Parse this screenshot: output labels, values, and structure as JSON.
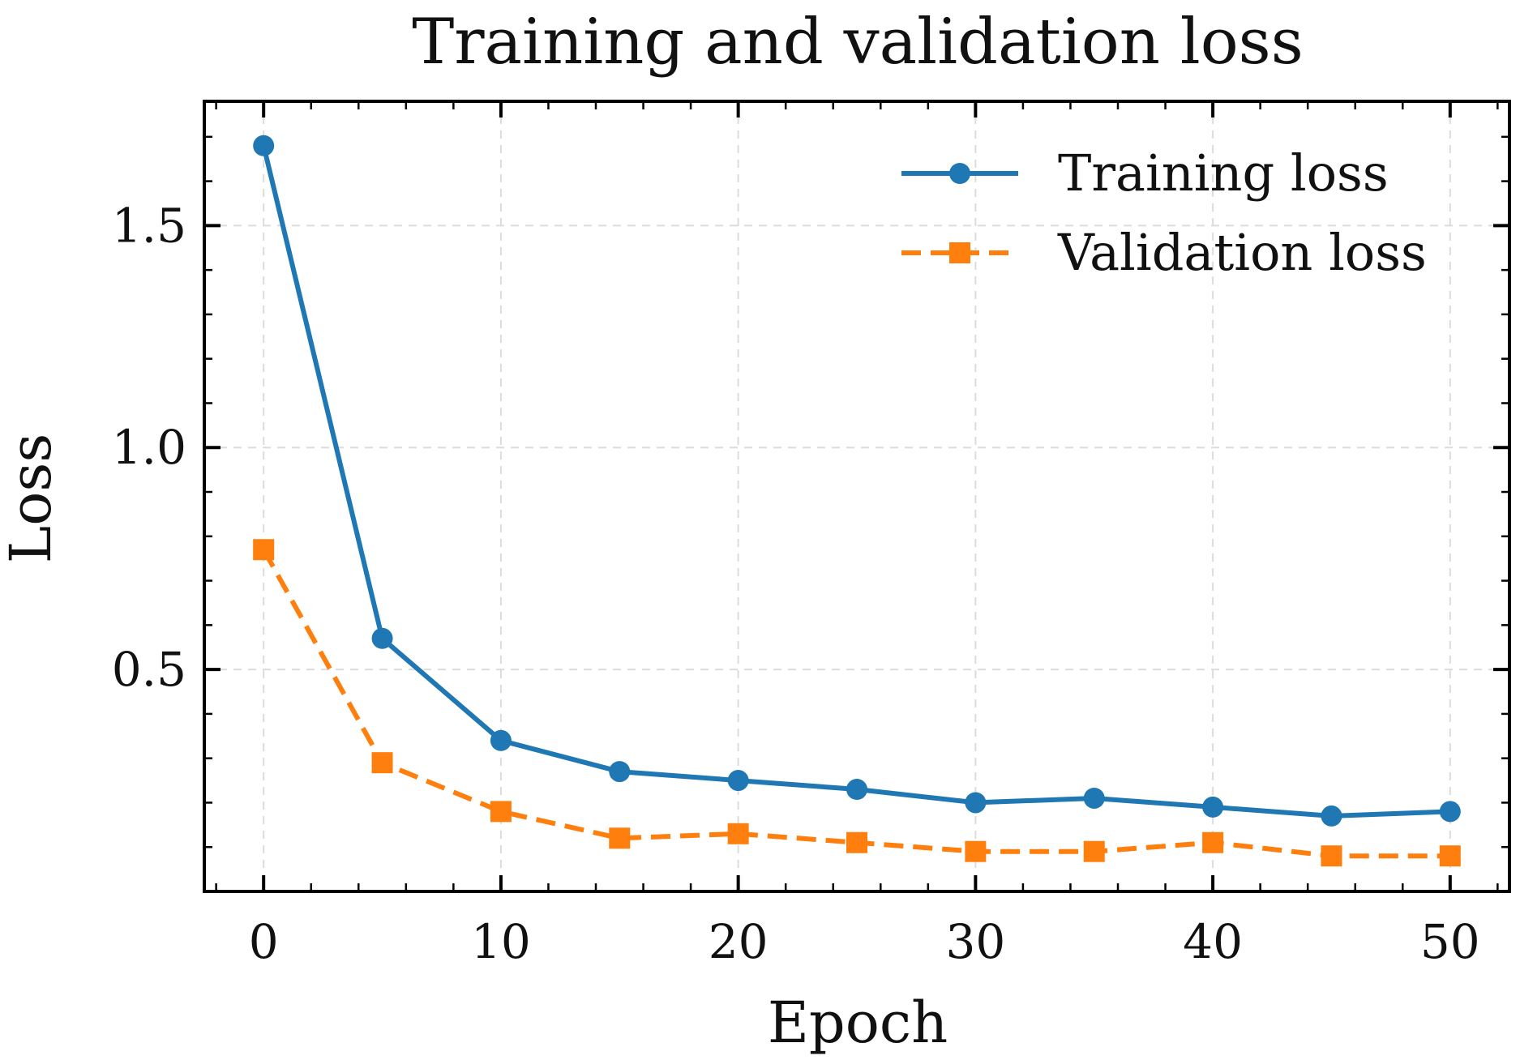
{
  "chart_data": {
    "type": "line",
    "title": "Training and validation loss",
    "xlabel": "Epoch",
    "ylabel": "Loss",
    "xlim": [
      -2.5,
      52.5
    ],
    "ylim": [
      0.0,
      1.78
    ],
    "xticks": [
      0,
      10,
      20,
      30,
      40,
      50
    ],
    "xtick_labels": [
      "0",
      "10",
      "20",
      "30",
      "40",
      "50"
    ],
    "yticks": [
      0.5,
      1.0,
      1.5
    ],
    "ytick_labels": [
      "0.5",
      "1.0",
      "1.5"
    ],
    "grid": true,
    "legend_position": "top-right",
    "x": [
      0,
      5,
      10,
      15,
      20,
      25,
      30,
      35,
      40,
      45,
      50
    ],
    "series": [
      {
        "name": "Training loss",
        "color": "#1f77b4",
        "line_style": "solid",
        "marker": "circle",
        "values": [
          1.68,
          0.57,
          0.34,
          0.27,
          0.25,
          0.23,
          0.2,
          0.21,
          0.19,
          0.17,
          0.18
        ]
      },
      {
        "name": "Validation loss",
        "color": "#ff7f0e",
        "line_style": "dashed",
        "marker": "square",
        "values": [
          0.77,
          0.29,
          0.18,
          0.12,
          0.13,
          0.11,
          0.09,
          0.09,
          0.11,
          0.08,
          0.08
        ]
      }
    ]
  }
}
